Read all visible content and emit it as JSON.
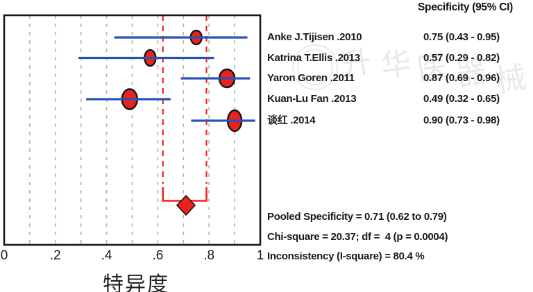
{
  "header": {
    "column_title": "Specificity (95% CI)"
  },
  "chart_data": {
    "type": "forest",
    "title": "",
    "xlabel": "特异度",
    "xlabel_meaning": "Specificity",
    "xlim": [
      0,
      1
    ],
    "grid_step": 0.1,
    "xticks": [
      {
        "v": 0,
        "label": "0"
      },
      {
        "v": 0.2,
        "label": ".2"
      },
      {
        "v": 0.4,
        "label": ".4"
      },
      {
        "v": 0.6,
        "label": ".6"
      },
      {
        "v": 0.8,
        "label": ".8"
      },
      {
        "v": 1,
        "label": "1"
      }
    ],
    "studies": [
      {
        "name": "Anke J.Tijisen .2010",
        "specificity": 0.75,
        "ci_low": 0.43,
        "ci_high": 0.95,
        "value_text": "0.75",
        "ci_text": "(0.43 - 0.95)",
        "marker": [
          8,
          10
        ]
      },
      {
        "name": "Katrina T.Ellis .2013",
        "specificity": 0.57,
        "ci_low": 0.29,
        "ci_high": 0.82,
        "value_text": "0.57",
        "ci_text": "(0.29 - 0.82)",
        "marker": [
          8,
          11.5
        ]
      },
      {
        "name": "Yaron Goren .2011",
        "specificity": 0.87,
        "ci_low": 0.69,
        "ci_high": 0.96,
        "value_text": "0.87",
        "ci_text": "(0.69 - 0.96)",
        "marker": [
          11,
          13
        ]
      },
      {
        "name": "Kuan-Lu Fan .2013",
        "specificity": 0.49,
        "ci_low": 0.32,
        "ci_high": 0.65,
        "value_text": "0.49",
        "ci_text": "(0.32 - 0.65)",
        "marker": [
          11,
          14.5
        ]
      },
      {
        "name": "谈红 .2014",
        "specificity": 0.9,
        "ci_low": 0.73,
        "ci_high": 0.98,
        "value_text": "0.90",
        "ci_text": "(0.73 - 0.98)",
        "marker": [
          10,
          15
        ]
      }
    ],
    "pooled": {
      "estimate": 0.71,
      "ci_low": 0.62,
      "ci_high": 0.79
    },
    "stats": [
      "Pooled Specificity = 0.71 (0.62 to 0.79)",
      "Chi-square = 20.37; df =  4 (p = 0.0004)",
      "Inconsistency (I-square) = 80.4 %"
    ],
    "legend_position": "none",
    "colors": {
      "ci_line": "#2a52b4",
      "marker_fill": "#e8231d",
      "marker_stroke": "#151515",
      "pooled_red": "#f2241c",
      "grid": "#b5b5b5",
      "border": "#1a1a1a",
      "text": "#18181f"
    }
  },
  "watermark": {
    "chars": [
      "升",
      "华",
      "医",
      "器",
      "械"
    ]
  }
}
